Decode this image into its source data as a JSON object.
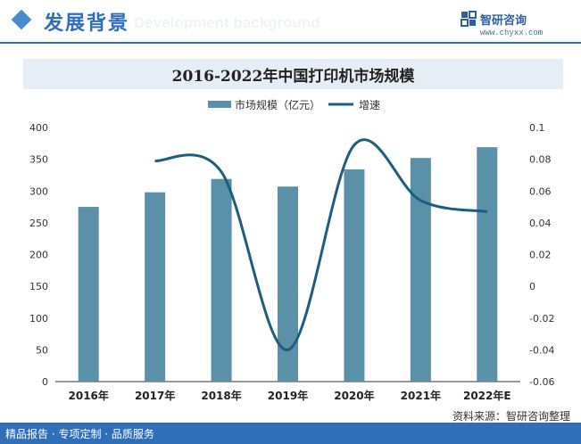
{
  "header": {
    "section_title": "发展背景",
    "section_subtitle": "Development background",
    "brand_name": "智研咨询",
    "brand_url": "www.chyxx.com"
  },
  "footer": {
    "left_text": "精品报告 · 专项定制 · 品质服务",
    "source": "资料来源：智研咨询整理"
  },
  "colors": {
    "bar": "#5a90a8",
    "line": "#1c5e80",
    "accent": "#2f6fb8",
    "title_band": "#e6edf4"
  },
  "chart_data": {
    "type": "bar+line",
    "title": "2016-2022年中国打印机市场规模",
    "categories": [
      "2016年",
      "2017年",
      "2018年",
      "2019年",
      "2020年",
      "2021年",
      "2022年E"
    ],
    "series": [
      {
        "name": "市场规模（亿元）",
        "type": "bar",
        "axis": "left",
        "values": [
          275,
          298,
          319,
          307,
          334,
          352,
          369
        ]
      },
      {
        "name": "增速",
        "type": "line",
        "axis": "right",
        "values": [
          null,
          0.079,
          0.072,
          -0.04,
          0.089,
          0.054,
          0.047
        ]
      }
    ],
    "y_left": {
      "min": 0,
      "max": 400,
      "ticks": [
        0,
        50,
        100,
        150,
        200,
        250,
        300,
        350,
        400
      ]
    },
    "y_right": {
      "min": -0.06,
      "max": 0.1,
      "ticks": [
        "-0.06",
        "-0.04",
        "-0.02",
        "0",
        "0.02",
        "0.04",
        "0.06",
        "0.08",
        "0.1"
      ]
    },
    "legend_position": "top-center",
    "grid": false
  }
}
